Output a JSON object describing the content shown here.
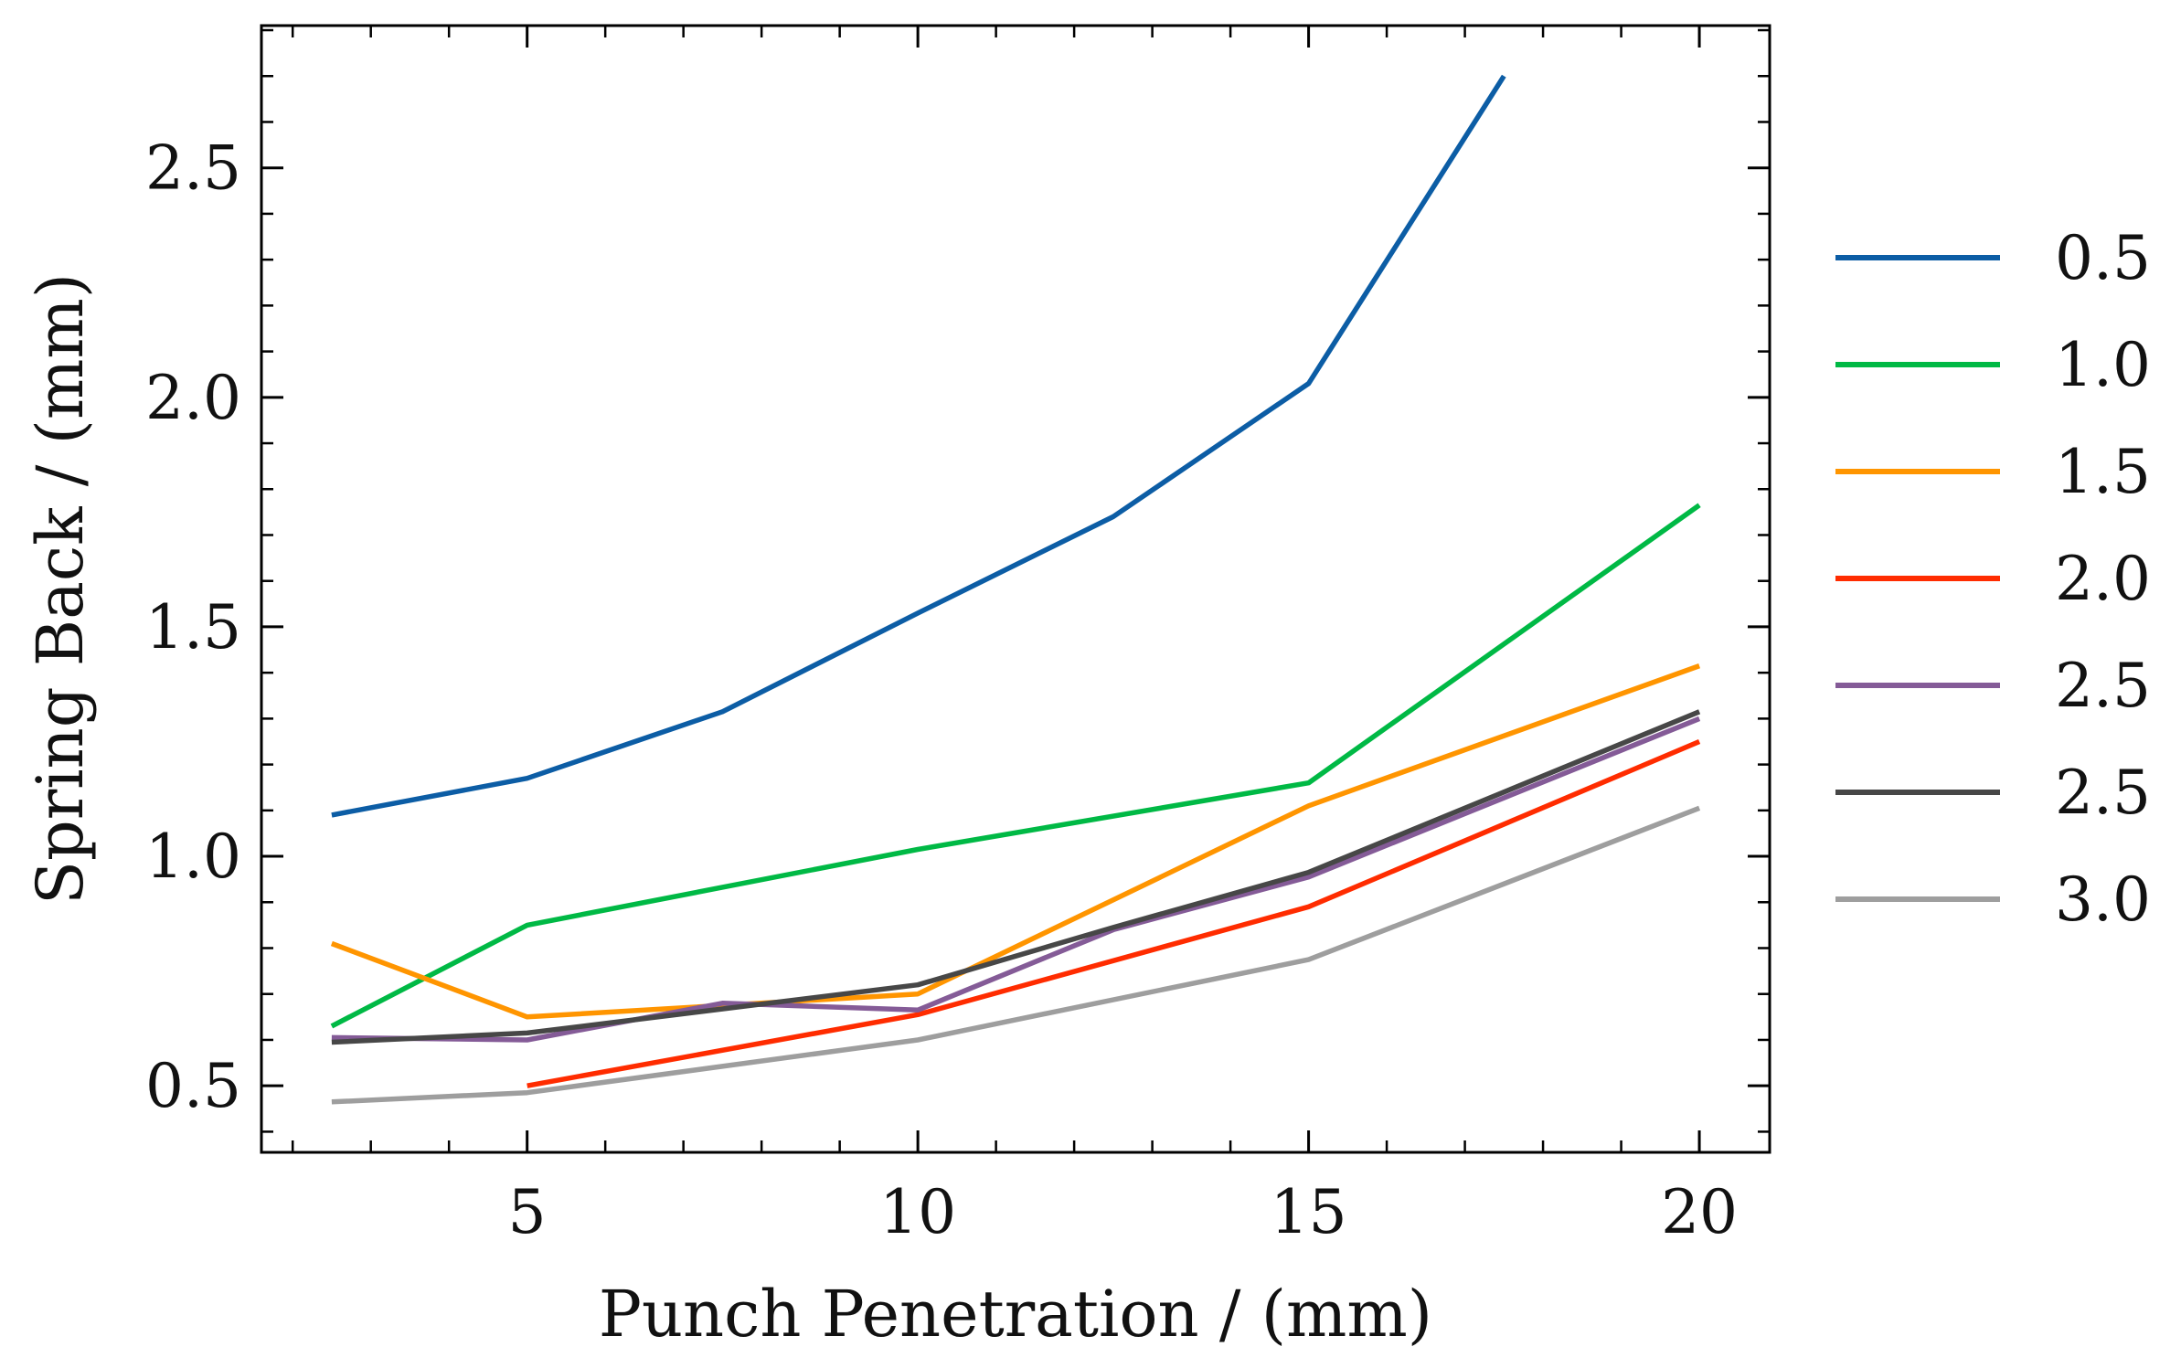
{
  "chart_data": {
    "type": "line",
    "title": "",
    "xlabel": "Punch Penetration / (mm)",
    "ylabel": "Spring Back / (mm)",
    "xlim": [
      1.6,
      20.9
    ],
    "ylim": [
      0.355,
      2.81
    ],
    "xticks": [
      5,
      10,
      15,
      20
    ],
    "xtick_labels": [
      "5",
      "10",
      "15",
      "20"
    ],
    "yticks": [
      0.5,
      1.0,
      1.5,
      2.0,
      2.5
    ],
    "ytick_labels": [
      "0.5",
      "1.0",
      "1.5",
      "2.0",
      "2.5"
    ],
    "x_minor_step": 1,
    "y_minor_step": 0.1,
    "grid": false,
    "legend_position": "outside-right",
    "series": [
      {
        "name": "0.5",
        "color": "#0c5da5",
        "x": [
          2.5,
          5,
          7.5,
          10,
          12.5,
          15,
          17.5
        ],
        "y": [
          1.09,
          1.17,
          1.315,
          1.53,
          1.74,
          2.03,
          2.7
        ]
      },
      {
        "name": "1.0",
        "color": "#00b945",
        "x": [
          2.5,
          5,
          10,
          15,
          20
        ],
        "y": [
          0.63,
          0.85,
          1.015,
          1.16,
          1.765
        ]
      },
      {
        "name": "1.5",
        "color": "#ff9500",
        "x": [
          2.5,
          5,
          10,
          15,
          20
        ],
        "y": [
          0.81,
          0.65,
          0.7,
          1.11,
          1.415
        ]
      },
      {
        "name": "2.0",
        "color": "#ff2c00",
        "x": [
          5,
          10,
          15,
          20
        ],
        "y": [
          0.5,
          0.655,
          0.89,
          1.25
        ]
      },
      {
        "name": "2.5",
        "color": "#845b97",
        "x": [
          2.5,
          5,
          7.5,
          10,
          12.5,
          15,
          20
        ],
        "y": [
          0.605,
          0.6,
          0.68,
          0.665,
          0.84,
          0.955,
          1.3
        ]
      },
      {
        "name": "2.5",
        "color": "#474747",
        "x": [
          2.5,
          5,
          10,
          12.5,
          15,
          20
        ],
        "y": [
          0.595,
          0.615,
          0.72,
          0.845,
          0.965,
          1.315
        ]
      },
      {
        "name": "3.0",
        "color": "#9e9e9e",
        "x": [
          2.5,
          5,
          10,
          15,
          20
        ],
        "y": [
          0.465,
          0.485,
          0.6,
          0.775,
          1.105
        ]
      }
    ]
  }
}
